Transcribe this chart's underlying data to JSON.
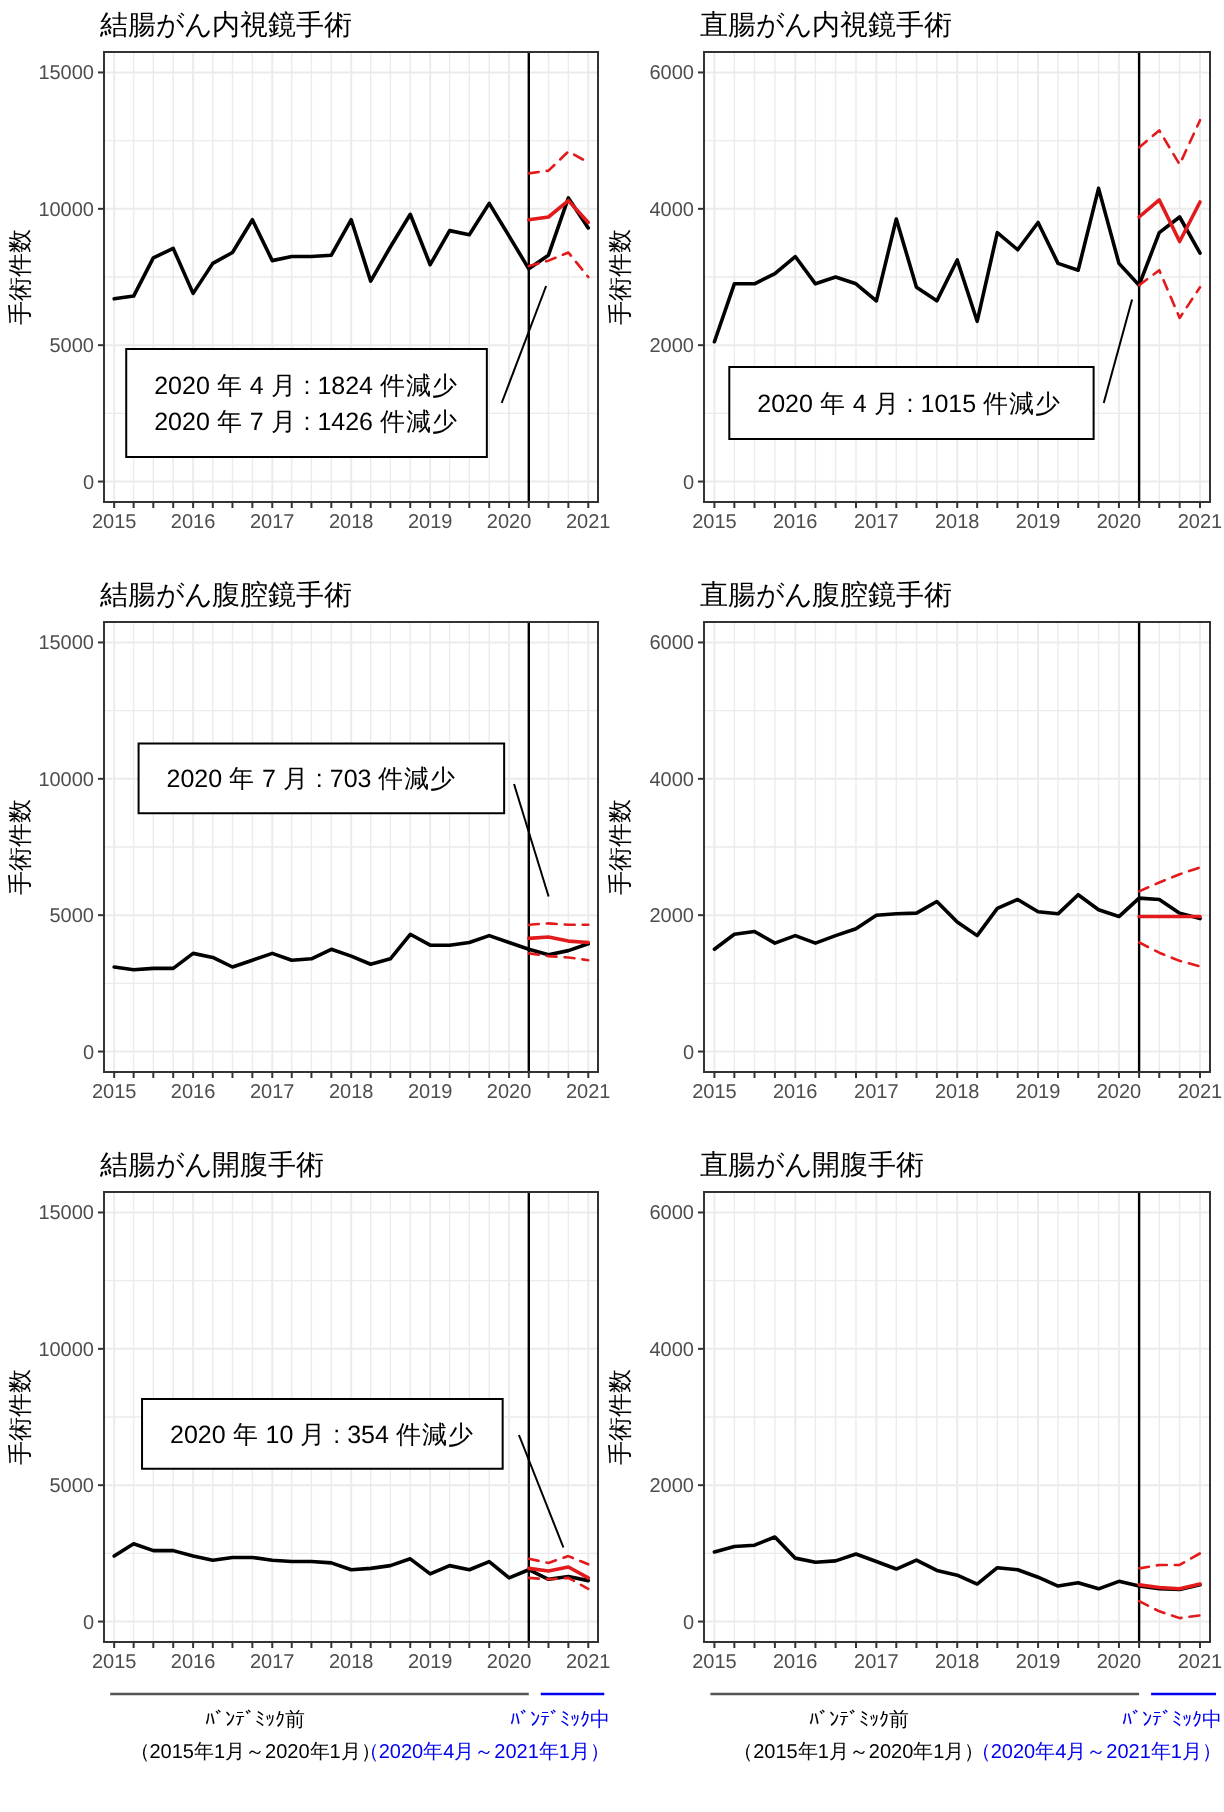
{
  "chart_data": [
    {
      "type": "line",
      "title": "結腸がん内視鏡手術",
      "ylabel": "手術件数",
      "x": [
        "2015-01",
        "2015-04",
        "2015-07",
        "2015-10",
        "2016-01",
        "2016-04",
        "2016-07",
        "2016-10",
        "2017-01",
        "2017-04",
        "2017-07",
        "2017-10",
        "2018-01",
        "2018-04",
        "2018-07",
        "2018-10",
        "2019-01",
        "2019-04",
        "2019-07",
        "2019-10",
        "2020-01",
        "2020-04",
        "2020-07",
        "2020-10",
        "2021-01"
      ],
      "xlim": [
        "2014-11-15",
        "2021-02-15"
      ],
      "xticks": [
        {
          "value": "2015-01",
          "label": "2015"
        },
        {
          "value": "2015-04",
          "label": null
        },
        {
          "value": "2015-07",
          "label": null
        },
        {
          "value": "2015-10",
          "label": null
        },
        {
          "value": "2016-01",
          "label": "2016"
        },
        {
          "value": "2016-04",
          "label": null
        },
        {
          "value": "2016-07",
          "label": null
        },
        {
          "value": "2016-10",
          "label": null
        },
        {
          "value": "2017-01",
          "label": "2017"
        },
        {
          "value": "2017-04",
          "label": null
        },
        {
          "value": "2017-07",
          "label": null
        },
        {
          "value": "2017-10",
          "label": null
        },
        {
          "value": "2018-01",
          "label": "2018"
        },
        {
          "value": "2018-04",
          "label": null
        },
        {
          "value": "2018-07",
          "label": null
        },
        {
          "value": "2018-10",
          "label": null
        },
        {
          "value": "2019-01",
          "label": "2019"
        },
        {
          "value": "2019-04",
          "label": null
        },
        {
          "value": "2019-07",
          "label": null
        },
        {
          "value": "2019-10",
          "label": null
        },
        {
          "value": "2020-01",
          "label": "2020"
        },
        {
          "value": "2020-04",
          "label": null
        },
        {
          "value": "2020-07",
          "label": null
        },
        {
          "value": "2020-10",
          "label": null
        },
        {
          "value": "2021-01",
          "label": "2021"
        }
      ],
      "ylim": [
        -750,
        15750
      ],
      "yticks": [
        0,
        {
          "value": 2500,
          "label": null
        },
        5000,
        {
          "value": 7500,
          "label": null
        },
        10000,
        {
          "value": 12500,
          "label": null
        },
        15000
      ],
      "grid": true,
      "series": [
        {
          "color": "#000000",
          "values": [
            6700,
            6800,
            8200,
            8550,
            6900,
            8000,
            8400,
            9600,
            8100,
            8250,
            8250,
            8300,
            9600,
            7350,
            8600,
            9800,
            7950,
            9200,
            9050,
            10200,
            9000,
            7800,
            8300,
            10400,
            9300
          ]
        },
        {
          "x": [
            "2020-04",
            "2020-07",
            "2020-10",
            "2021-01"
          ],
          "color": "#e31a1c",
          "values": [
            9600,
            9700,
            10300,
            9500
          ]
        },
        {
          "x": [
            "2020-04",
            "2020-07",
            "2020-10",
            "2021-01"
          ],
          "color": "#e31a1c",
          "line_style": "dashed",
          "values": [
            11300,
            11400,
            12100,
            11700
          ]
        },
        {
          "x": [
            "2020-04",
            "2020-07",
            "2020-10",
            "2021-01"
          ],
          "color": "#e31a1c",
          "line_style": "dashed",
          "values": [
            7900,
            8100,
            8400,
            7500
          ]
        }
      ],
      "ref_lines": [
        {
          "axis": "x",
          "value": "2020-04",
          "color": "#000000"
        }
      ],
      "annotations": [
        "2020 年 4 月 : 1824 件減少",
        "2020 年 7 月 : 1426 件減少"
      ]
    },
    {
      "type": "line",
      "title": "直腸がん内視鏡手術",
      "ylabel": "手術件数",
      "x": [
        "2015-01",
        "2015-04",
        "2015-07",
        "2015-10",
        "2016-01",
        "2016-04",
        "2016-07",
        "2016-10",
        "2017-01",
        "2017-04",
        "2017-07",
        "2017-10",
        "2018-01",
        "2018-04",
        "2018-07",
        "2018-10",
        "2019-01",
        "2019-04",
        "2019-07",
        "2019-10",
        "2020-01",
        "2020-04",
        "2020-07",
        "2020-10",
        "2021-01"
      ],
      "xlim": [
        "2014-11-15",
        "2021-02-15"
      ],
      "xticks": [
        {
          "value": "2015-01",
          "label": "2015"
        },
        {
          "value": "2015-04",
          "label": null
        },
        {
          "value": "2015-07",
          "label": null
        },
        {
          "value": "2015-10",
          "label": null
        },
        {
          "value": "2016-01",
          "label": "2016"
        },
        {
          "value": "2016-04",
          "label": null
        },
        {
          "value": "2016-07",
          "label": null
        },
        {
          "value": "2016-10",
          "label": null
        },
        {
          "value": "2017-01",
          "label": "2017"
        },
        {
          "value": "2017-04",
          "label": null
        },
        {
          "value": "2017-07",
          "label": null
        },
        {
          "value": "2017-10",
          "label": null
        },
        {
          "value": "2018-01",
          "label": "2018"
        },
        {
          "value": "2018-04",
          "label": null
        },
        {
          "value": "2018-07",
          "label": null
        },
        {
          "value": "2018-10",
          "label": null
        },
        {
          "value": "2019-01",
          "label": "2019"
        },
        {
          "value": "2019-04",
          "label": null
        },
        {
          "value": "2019-07",
          "label": null
        },
        {
          "value": "2019-10",
          "label": null
        },
        {
          "value": "2020-01",
          "label": "2020"
        },
        {
          "value": "2020-04",
          "label": null
        },
        {
          "value": "2020-07",
          "label": null
        },
        {
          "value": "2020-10",
          "label": null
        },
        {
          "value": "2021-01",
          "label": "2021"
        }
      ],
      "ylim": [
        -300,
        6300
      ],
      "yticks": [
        0,
        {
          "value": 1000,
          "label": null
        },
        2000,
        {
          "value": 3000,
          "label": null
        },
        4000,
        {
          "value": 5000,
          "label": null
        },
        6000
      ],
      "grid": true,
      "series": [
        {
          "color": "#000000",
          "values": [
            2050,
            2900,
            2900,
            3050,
            3300,
            2900,
            3000,
            2900,
            2650,
            3850,
            2850,
            2650,
            3250,
            2350,
            3650,
            3400,
            3800,
            3200,
            3100,
            4300,
            3200,
            2880,
            3650,
            3880,
            3350
          ]
        },
        {
          "x": [
            "2020-04",
            "2020-07",
            "2020-10",
            "2021-01"
          ],
          "color": "#e31a1c",
          "values": [
            3880,
            4130,
            3520,
            4100
          ]
        },
        {
          "x": [
            "2020-04",
            "2020-07",
            "2020-10",
            "2021-01"
          ],
          "color": "#e31a1c",
          "line_style": "dashed",
          "values": [
            4900,
            5150,
            4650,
            5300
          ]
        },
        {
          "x": [
            "2020-04",
            "2020-07",
            "2020-10",
            "2021-01"
          ],
          "color": "#e31a1c",
          "line_style": "dashed",
          "values": [
            2880,
            3100,
            2400,
            2850
          ]
        }
      ],
      "ref_lines": [
        {
          "axis": "x",
          "value": "2020-04",
          "color": "#000000"
        }
      ],
      "annotations": [
        "2020 年 4 月 : 1015 件減少"
      ]
    },
    {
      "type": "line",
      "title": "結腸がん腹腔鏡手術",
      "ylabel": "手術件数",
      "x": [
        "2015-01",
        "2015-04",
        "2015-07",
        "2015-10",
        "2016-01",
        "2016-04",
        "2016-07",
        "2016-10",
        "2017-01",
        "2017-04",
        "2017-07",
        "2017-10",
        "2018-01",
        "2018-04",
        "2018-07",
        "2018-10",
        "2019-01",
        "2019-04",
        "2019-07",
        "2019-10",
        "2020-01",
        "2020-04",
        "2020-07",
        "2020-10",
        "2021-01"
      ],
      "xlim": [
        "2014-11-15",
        "2021-02-15"
      ],
      "xticks": [
        {
          "value": "2015-01",
          "label": "2015"
        },
        {
          "value": "2015-04",
          "label": null
        },
        {
          "value": "2015-07",
          "label": null
        },
        {
          "value": "2015-10",
          "label": null
        },
        {
          "value": "2016-01",
          "label": "2016"
        },
        {
          "value": "2016-04",
          "label": null
        },
        {
          "value": "2016-07",
          "label": null
        },
        {
          "value": "2016-10",
          "label": null
        },
        {
          "value": "2017-01",
          "label": "2017"
        },
        {
          "value": "2017-04",
          "label": null
        },
        {
          "value": "2017-07",
          "label": null
        },
        {
          "value": "2017-10",
          "label": null
        },
        {
          "value": "2018-01",
          "label": "2018"
        },
        {
          "value": "2018-04",
          "label": null
        },
        {
          "value": "2018-07",
          "label": null
        },
        {
          "value": "2018-10",
          "label": null
        },
        {
          "value": "2019-01",
          "label": "2019"
        },
        {
          "value": "2019-04",
          "label": null
        },
        {
          "value": "2019-07",
          "label": null
        },
        {
          "value": "2019-10",
          "label": null
        },
        {
          "value": "2020-01",
          "label": "2020"
        },
        {
          "value": "2020-04",
          "label": null
        },
        {
          "value": "2020-07",
          "label": null
        },
        {
          "value": "2020-10",
          "label": null
        },
        {
          "value": "2021-01",
          "label": "2021"
        }
      ],
      "ylim": [
        -750,
        15750
      ],
      "yticks": [
        0,
        {
          "value": 2500,
          "label": null
        },
        5000,
        {
          "value": 7500,
          "label": null
        },
        10000,
        {
          "value": 12500,
          "label": null
        },
        15000
      ],
      "grid": true,
      "series": [
        {
          "color": "#000000",
          "values": [
            3100,
            3000,
            3050,
            3050,
            3600,
            3450,
            3100,
            3350,
            3600,
            3350,
            3400,
            3750,
            3500,
            3200,
            3400,
            4300,
            3900,
            3900,
            4000,
            4250,
            4000,
            3750,
            3550,
            3700,
            3950
          ]
        },
        {
          "x": [
            "2020-04",
            "2020-07",
            "2020-10",
            "2021-01"
          ],
          "color": "#e31a1c",
          "values": [
            4150,
            4200,
            4050,
            4000
          ]
        },
        {
          "x": [
            "2020-04",
            "2020-07",
            "2020-10",
            "2021-01"
          ],
          "color": "#e31a1c",
          "line_style": "dashed",
          "values": [
            4650,
            4700,
            4650,
            4650
          ]
        },
        {
          "x": [
            "2020-04",
            "2020-07",
            "2020-10",
            "2021-01"
          ],
          "color": "#e31a1c",
          "line_style": "dashed",
          "values": [
            3600,
            3500,
            3450,
            3350
          ]
        }
      ],
      "ref_lines": [
        {
          "axis": "x",
          "value": "2020-04",
          "color": "#000000"
        }
      ],
      "annotations": [
        "2020 年 7 月 : 703 件減少"
      ]
    },
    {
      "type": "line",
      "title": "直腸がん腹腔鏡手術",
      "ylabel": "手術件数",
      "x": [
        "2015-01",
        "2015-04",
        "2015-07",
        "2015-10",
        "2016-01",
        "2016-04",
        "2016-07",
        "2016-10",
        "2017-01",
        "2017-04",
        "2017-07",
        "2017-10",
        "2018-01",
        "2018-04",
        "2018-07",
        "2018-10",
        "2019-01",
        "2019-04",
        "2019-07",
        "2019-10",
        "2020-01",
        "2020-04",
        "2020-07",
        "2020-10",
        "2021-01"
      ],
      "xlim": [
        "2014-11-15",
        "2021-02-15"
      ],
      "xticks": [
        {
          "value": "2015-01",
          "label": "2015"
        },
        {
          "value": "2015-04",
          "label": null
        },
        {
          "value": "2015-07",
          "label": null
        },
        {
          "value": "2015-10",
          "label": null
        },
        {
          "value": "2016-01",
          "label": "2016"
        },
        {
          "value": "2016-04",
          "label": null
        },
        {
          "value": "2016-07",
          "label": null
        },
        {
          "value": "2016-10",
          "label": null
        },
        {
          "value": "2017-01",
          "label": "2017"
        },
        {
          "value": "2017-04",
          "label": null
        },
        {
          "value": "2017-07",
          "label": null
        },
        {
          "value": "2017-10",
          "label": null
        },
        {
          "value": "2018-01",
          "label": "2018"
        },
        {
          "value": "2018-04",
          "label": null
        },
        {
          "value": "2018-07",
          "label": null
        },
        {
          "value": "2018-10",
          "label": null
        },
        {
          "value": "2019-01",
          "label": "2019"
        },
        {
          "value": "2019-04",
          "label": null
        },
        {
          "value": "2019-07",
          "label": null
        },
        {
          "value": "2019-10",
          "label": null
        },
        {
          "value": "2020-01",
          "label": "2020"
        },
        {
          "value": "2020-04",
          "label": null
        },
        {
          "value": "2020-07",
          "label": null
        },
        {
          "value": "2020-10",
          "label": null
        },
        {
          "value": "2021-01",
          "label": "2021"
        }
      ],
      "ylim": [
        -300,
        6300
      ],
      "yticks": [
        0,
        {
          "value": 1000,
          "label": null
        },
        2000,
        {
          "value": 3000,
          "label": null
        },
        4000,
        {
          "value": 5000,
          "label": null
        },
        6000
      ],
      "grid": true,
      "series": [
        {
          "color": "#000000",
          "values": [
            1500,
            1720,
            1760,
            1590,
            1700,
            1590,
            1700,
            1800,
            2000,
            2020,
            2030,
            2200,
            1900,
            1700,
            2100,
            2230,
            2050,
            2020,
            2300,
            2080,
            1980,
            2250,
            2230,
            2030,
            1950
          ]
        },
        {
          "x": [
            "2020-04",
            "2020-07",
            "2020-10",
            "2021-01"
          ],
          "color": "#e31a1c",
          "values": [
            1980,
            1980,
            1980,
            1980
          ]
        },
        {
          "x": [
            "2020-04",
            "2020-07",
            "2020-10",
            "2021-01"
          ],
          "color": "#e31a1c",
          "line_style": "dashed",
          "values": [
            2350,
            2480,
            2600,
            2700
          ]
        },
        {
          "x": [
            "2020-04",
            "2020-07",
            "2020-10",
            "2021-01"
          ],
          "color": "#e31a1c",
          "line_style": "dashed",
          "values": [
            1600,
            1450,
            1330,
            1250
          ]
        }
      ],
      "ref_lines": [
        {
          "axis": "x",
          "value": "2020-04",
          "color": "#000000"
        }
      ]
    },
    {
      "type": "line",
      "title": "結腸がん開腹手術",
      "ylabel": "手術件数",
      "x": [
        "2015-01",
        "2015-04",
        "2015-07",
        "2015-10",
        "2016-01",
        "2016-04",
        "2016-07",
        "2016-10",
        "2017-01",
        "2017-04",
        "2017-07",
        "2017-10",
        "2018-01",
        "2018-04",
        "2018-07",
        "2018-10",
        "2019-01",
        "2019-04",
        "2019-07",
        "2019-10",
        "2020-01",
        "2020-04",
        "2020-07",
        "2020-10",
        "2021-01"
      ],
      "xlim": [
        "2014-11-15",
        "2021-02-15"
      ],
      "xticks": [
        {
          "value": "2015-01",
          "label": "2015"
        },
        {
          "value": "2015-04",
          "label": null
        },
        {
          "value": "2015-07",
          "label": null
        },
        {
          "value": "2015-10",
          "label": null
        },
        {
          "value": "2016-01",
          "label": "2016"
        },
        {
          "value": "2016-04",
          "label": null
        },
        {
          "value": "2016-07",
          "label": null
        },
        {
          "value": "2016-10",
          "label": null
        },
        {
          "value": "2017-01",
          "label": "2017"
        },
        {
          "value": "2017-04",
          "label": null
        },
        {
          "value": "2017-07",
          "label": null
        },
        {
          "value": "2017-10",
          "label": null
        },
        {
          "value": "2018-01",
          "label": "2018"
        },
        {
          "value": "2018-04",
          "label": null
        },
        {
          "value": "2018-07",
          "label": null
        },
        {
          "value": "2018-10",
          "label": null
        },
        {
          "value": "2019-01",
          "label": "2019"
        },
        {
          "value": "2019-04",
          "label": null
        },
        {
          "value": "2019-07",
          "label": null
        },
        {
          "value": "2019-10",
          "label": null
        },
        {
          "value": "2020-01",
          "label": "2020"
        },
        {
          "value": "2020-04",
          "label": null
        },
        {
          "value": "2020-07",
          "label": null
        },
        {
          "value": "2020-10",
          "label": null
        },
        {
          "value": "2021-01",
          "label": "2021"
        }
      ],
      "ylim": [
        -750,
        15750
      ],
      "yticks": [
        0,
        {
          "value": 2500,
          "label": null
        },
        5000,
        {
          "value": 7500,
          "label": null
        },
        10000,
        {
          "value": 12500,
          "label": null
        },
        15000
      ],
      "grid": true,
      "series": [
        {
          "color": "#000000",
          "values": [
            2400,
            2850,
            2600,
            2600,
            2400,
            2250,
            2350,
            2350,
            2250,
            2200,
            2200,
            2150,
            1900,
            1950,
            2050,
            2300,
            1750,
            2050,
            1900,
            2200,
            1600,
            1900,
            1550,
            1650,
            1500
          ]
        },
        {
          "x": [
            "2020-04",
            "2020-07",
            "2020-10",
            "2021-01"
          ],
          "color": "#e31a1c",
          "values": [
            1950,
            1850,
            2000,
            1600
          ]
        },
        {
          "x": [
            "2020-04",
            "2020-07",
            "2020-10",
            "2021-01"
          ],
          "color": "#e31a1c",
          "line_style": "dashed",
          "values": [
            2300,
            2150,
            2400,
            2100
          ]
        },
        {
          "x": [
            "2020-04",
            "2020-07",
            "2020-10",
            "2021-01"
          ],
          "color": "#e31a1c",
          "line_style": "dashed",
          "values": [
            1600,
            1550,
            1600,
            1200
          ]
        }
      ],
      "ref_lines": [
        {
          "axis": "x",
          "value": "2020-04",
          "color": "#000000"
        }
      ],
      "annotations": [
        "2020 年 10 月 : 354 件減少",
        "ﾊﾞﾝﾃﾞﾐｯｸ前",
        "（2015年1月～2020年1月）",
        "ﾊﾞﾝﾃﾞﾐｯｸ中",
        "（2020年4月～2021年1月）"
      ]
    },
    {
      "type": "line",
      "title": "直腸がん開腹手術",
      "ylabel": "手術件数",
      "x": [
        "2015-01",
        "2015-04",
        "2015-07",
        "2015-10",
        "2016-01",
        "2016-04",
        "2016-07",
        "2016-10",
        "2017-01",
        "2017-04",
        "2017-07",
        "2017-10",
        "2018-01",
        "2018-04",
        "2018-07",
        "2018-10",
        "2019-01",
        "2019-04",
        "2019-07",
        "2019-10",
        "2020-01",
        "2020-04",
        "2020-07",
        "2020-10",
        "2021-01"
      ],
      "xlim": [
        "2014-11-15",
        "2021-02-15"
      ],
      "xticks": [
        {
          "value": "2015-01",
          "label": "2015"
        },
        {
          "value": "2015-04",
          "label": null
        },
        {
          "value": "2015-07",
          "label": null
        },
        {
          "value": "2015-10",
          "label": null
        },
        {
          "value": "2016-01",
          "label": "2016"
        },
        {
          "value": "2016-04",
          "label": null
        },
        {
          "value": "2016-07",
          "label": null
        },
        {
          "value": "2016-10",
          "label": null
        },
        {
          "value": "2017-01",
          "label": "2017"
        },
        {
          "value": "2017-04",
          "label": null
        },
        {
          "value": "2017-07",
          "label": null
        },
        {
          "value": "2017-10",
          "label": null
        },
        {
          "value": "2018-01",
          "label": "2018"
        },
        {
          "value": "2018-04",
          "label": null
        },
        {
          "value": "2018-07",
          "label": null
        },
        {
          "value": "2018-10",
          "label": null
        },
        {
          "value": "2019-01",
          "label": "2019"
        },
        {
          "value": "2019-04",
          "label": null
        },
        {
          "value": "2019-07",
          "label": null
        },
        {
          "value": "2019-10",
          "label": null
        },
        {
          "value": "2020-01",
          "label": "2020"
        },
        {
          "value": "2020-04",
          "label": null
        },
        {
          "value": "2020-07",
          "label": null
        },
        {
          "value": "2020-10",
          "label": null
        },
        {
          "value": "2021-01",
          "label": "2021"
        }
      ],
      "ylim": [
        -300,
        6300
      ],
      "yticks": [
        0,
        {
          "value": 1000,
          "label": null
        },
        2000,
        {
          "value": 3000,
          "label": null
        },
        4000,
        {
          "value": 5000,
          "label": null
        },
        6000
      ],
      "grid": true,
      "series": [
        {
          "color": "#000000",
          "values": [
            1020,
            1100,
            1120,
            1240,
            930,
            870,
            890,
            990,
            880,
            770,
            900,
            750,
            680,
            550,
            790,
            760,
            650,
            520,
            570,
            480,
            590,
            520,
            480,
            470,
            540
          ]
        },
        {
          "x": [
            "2020-04",
            "2020-07",
            "2020-10",
            "2021-01"
          ],
          "color": "#e31a1c",
          "values": [
            540,
            500,
            480,
            550
          ]
        },
        {
          "x": [
            "2020-04",
            "2020-07",
            "2020-10",
            "2021-01"
          ],
          "color": "#e31a1c",
          "line_style": "dashed",
          "values": [
            780,
            830,
            830,
            1000
          ]
        },
        {
          "x": [
            "2020-04",
            "2020-07",
            "2020-10",
            "2021-01"
          ],
          "color": "#e31a1c",
          "line_style": "dashed",
          "values": [
            300,
            150,
            50,
            90
          ]
        }
      ],
      "ref_lines": [
        {
          "axis": "x",
          "value": "2020-04",
          "color": "#000000"
        }
      ],
      "annotations": [
        "ﾊﾞﾝﾃﾞﾐｯｸ前",
        "（2015年1月～2020年1月）",
        "ﾊﾞﾝﾃﾞﾐｯｸ中",
        "（2020年4月～2021年1月）"
      ]
    }
  ]
}
